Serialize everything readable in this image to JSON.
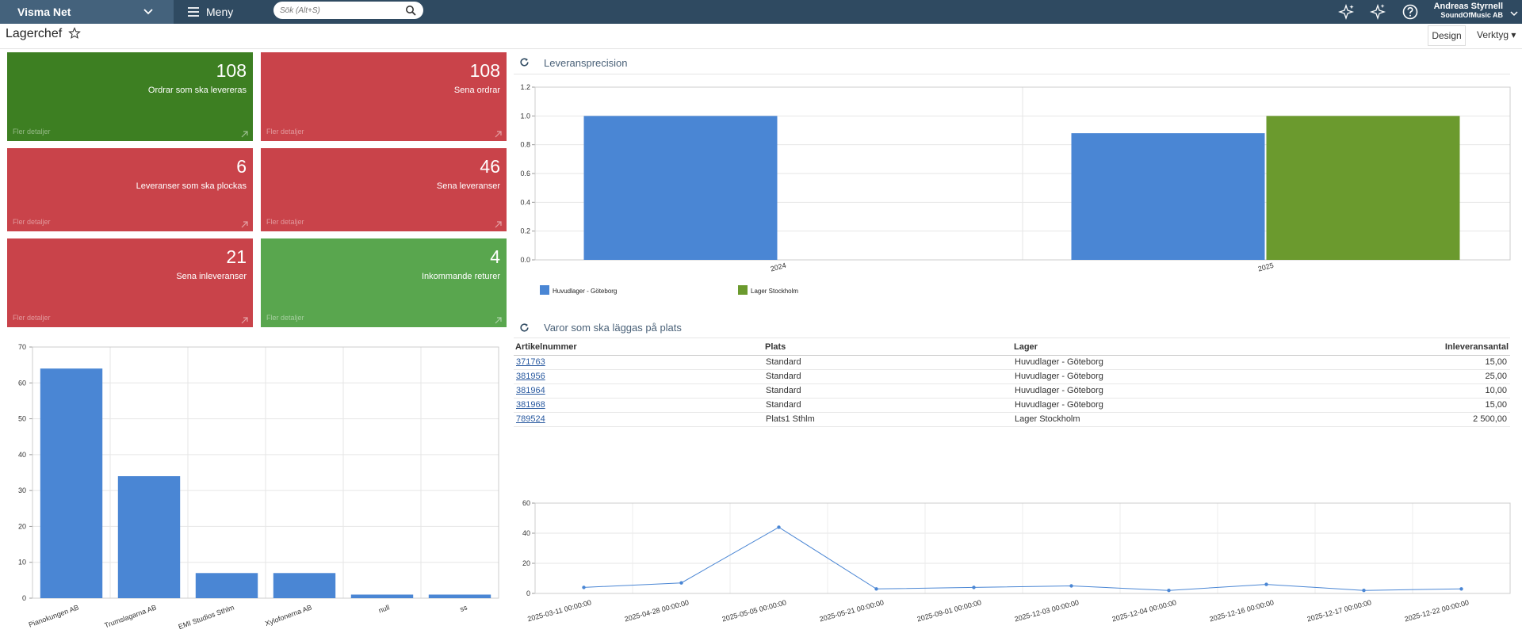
{
  "app": {
    "company": "Visma Net",
    "menu": "Meny",
    "search_placeholder": "Sök (Alt+S)",
    "user_name": "Andreas Styrnell",
    "user_company": "SoundOfMusic AB"
  },
  "page": {
    "title": "Lagerchef",
    "design": "Design",
    "tools": "Verktyg"
  },
  "tiles": [
    {
      "value": "108",
      "label": "Ordrar som ska levereras",
      "more": "Fler detaljer",
      "color": "#3d7f22"
    },
    {
      "value": "108",
      "label": "Sena ordrar",
      "more": "Fler detaljer",
      "color": "#c9434a"
    },
    {
      "value": "6",
      "label": "Leveranser som ska plockas",
      "more": "Fler detaljer",
      "color": "#c9434a"
    },
    {
      "value": "46",
      "label": "Sena leveranser",
      "more": "Fler detaljer",
      "color": "#c9434a"
    },
    {
      "value": "21",
      "label": "Sena inleveranser",
      "more": "Fler detaljer",
      "color": "#c9434a"
    },
    {
      "value": "4",
      "label": "Inkommande returer",
      "more": "Fler detaljer",
      "color": "#59a64e"
    }
  ],
  "widgets": {
    "precision_title": "Leveransprecision",
    "putaway_title": "Varor som ska läggas på plats"
  },
  "putaway": {
    "columns": [
      "Artikelnummer",
      "Plats",
      "Lager",
      "Inleveransantal"
    ],
    "rows": [
      [
        "371763",
        "Standard",
        "Huvudlager - Göteborg",
        "15,00"
      ],
      [
        "381956",
        "Standard",
        "Huvudlager - Göteborg",
        "25,00"
      ],
      [
        "381964",
        "Standard",
        "Huvudlager - Göteborg",
        "10,00"
      ],
      [
        "381968",
        "Standard",
        "Huvudlager - Göteborg",
        "15,00"
      ],
      [
        "789524",
        "Plats1 Sthlm",
        "Lager Stockholm",
        "2 500,00"
      ]
    ]
  },
  "chart_data": [
    {
      "type": "bar",
      "title": "",
      "categories": [
        "Pianokungen AB",
        "Trumslagarna AB",
        "EMI Studios Sthlm",
        "Xylofonerna AB",
        "null",
        "ss"
      ],
      "values": [
        64,
        34,
        7,
        7,
        1,
        1
      ],
      "ylim": [
        0,
        70
      ],
      "yticks": [
        0,
        10,
        20,
        30,
        40,
        50,
        60,
        70
      ],
      "grid": true,
      "color": "#4a86d4"
    },
    {
      "type": "bar",
      "title": "Leveransprecision",
      "categories": [
        "2024",
        "2025"
      ],
      "series": [
        {
          "name": "Huvudlager - Göteborg",
          "values": [
            1.0,
            0.88
          ],
          "color": "#4a86d4"
        },
        {
          "name": "Lager Stockholm",
          "values": [
            null,
            1.0
          ],
          "color": "#6b9a2e"
        }
      ],
      "ylim": [
        0,
        1.2
      ],
      "yticks": [
        "0.0",
        "0.2",
        "0.4",
        "0.6",
        "0.8",
        "1.0",
        "1.2"
      ],
      "grid": true,
      "legend": "bottom-left"
    },
    {
      "type": "line",
      "title": "",
      "x": [
        "2025-03-11 00:00:00",
        "2025-04-28 00:00:00",
        "2025-05-05 00:00:00",
        "2025-05-21 00:00:00",
        "2025-09-01 00:00:00",
        "2025-12-03 00:00:00",
        "2025-12-04 00:00:00",
        "2025-12-16 00:00:00",
        "2025-12-17 00:00:00",
        "2025-12-22 00:00:00"
      ],
      "values": [
        4,
        7,
        44,
        3,
        4,
        5,
        2,
        6,
        2,
        3
      ],
      "ylim": [
        0,
        60
      ],
      "yticks": [
        0,
        20,
        40,
        60
      ],
      "grid": true,
      "color": "#4a86d4"
    }
  ]
}
